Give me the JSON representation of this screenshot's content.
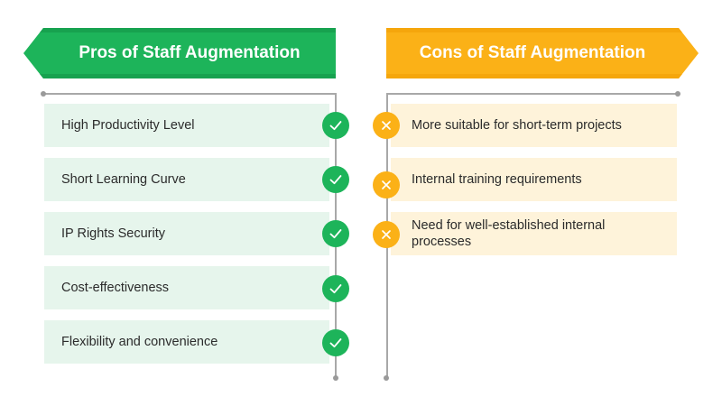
{
  "colors": {
    "pros_accent": "#1db45a",
    "pros_accent_dark": "#17a24f",
    "pros_row_bg": "#e6f5ec",
    "cons_accent": "#fbb117",
    "cons_accent_dark": "#f5a60c",
    "cons_row_bg": "#fef3da",
    "line": "#a8a8a8"
  },
  "pros": {
    "title": "Pros of Staff Augmentation",
    "icon": "check-icon",
    "items": [
      "High Productivity Level",
      "Short Learning Curve",
      "IP Rights Security",
      "Cost-effectiveness",
      "Flexibility and convenience"
    ]
  },
  "cons": {
    "title": "Cons of Staff Augmentation",
    "icon": "x-icon",
    "items": [
      "More suitable for short-term projects",
      "Internal training requirements",
      "Need for well-established internal processes"
    ]
  }
}
